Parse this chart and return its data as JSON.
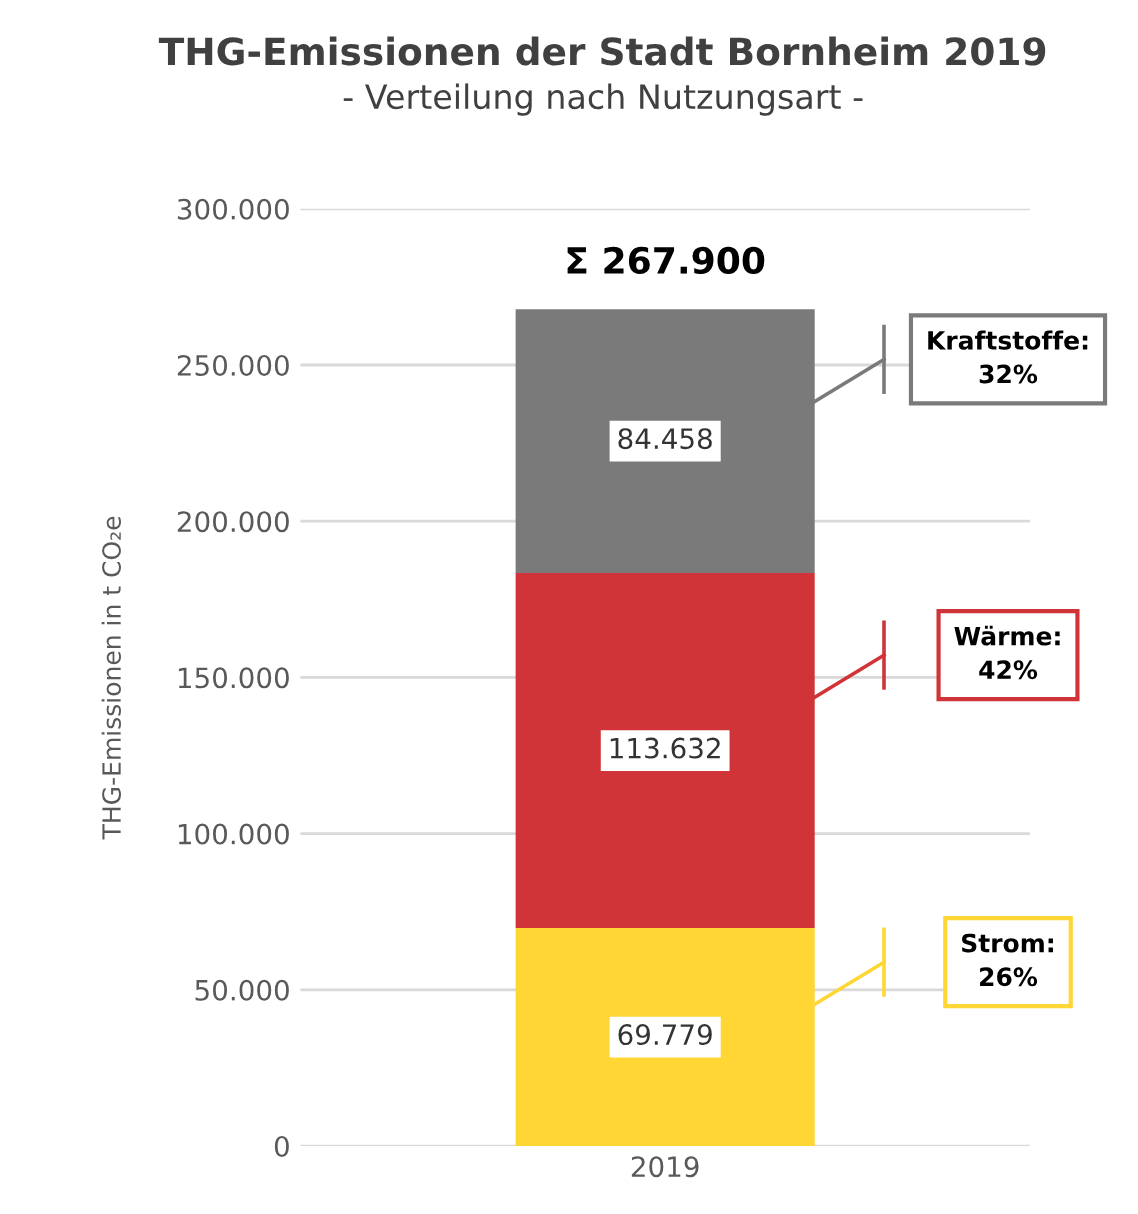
{
  "chart_data": {
    "type": "bar",
    "stacked": true,
    "title": "THG-Emissionen der Stadt Bornheim 2019",
    "subtitle": "- Verteilung nach Nutzungsart -",
    "ylabel": "THG-Emissionen in t CO₂e",
    "categories": [
      "2019"
    ],
    "series": [
      {
        "color": "#ffd633",
        "values": [
          69779
        ],
        "value_labels": [
          "69.779"
        ]
      },
      {
        "color": "#d13438",
        "values": [
          113632
        ],
        "value_labels": [
          "113.632"
        ]
      },
      {
        "color": "#7a7a7a",
        "values": [
          84458
        ],
        "value_labels": [
          "84.458"
        ]
      }
    ],
    "totals": [
      "Σ 267.900"
    ],
    "ylim": [
      0,
      300000
    ],
    "yticks": [
      {
        "value": 0,
        "label": "0"
      },
      {
        "value": 50000,
        "label": "50.000"
      },
      {
        "value": 100000,
        "label": "100.000"
      },
      {
        "value": 150000,
        "label": "150.000"
      },
      {
        "value": 200000,
        "label": "200.000"
      },
      {
        "value": 250000,
        "label": "250.000"
      },
      {
        "value": 300000,
        "label": "300.000"
      }
    ],
    "grid": "y",
    "annotations": [
      "Strom:\n26%",
      "Wärme:\n42%",
      "Kraftstoffe:\n32%"
    ]
  }
}
